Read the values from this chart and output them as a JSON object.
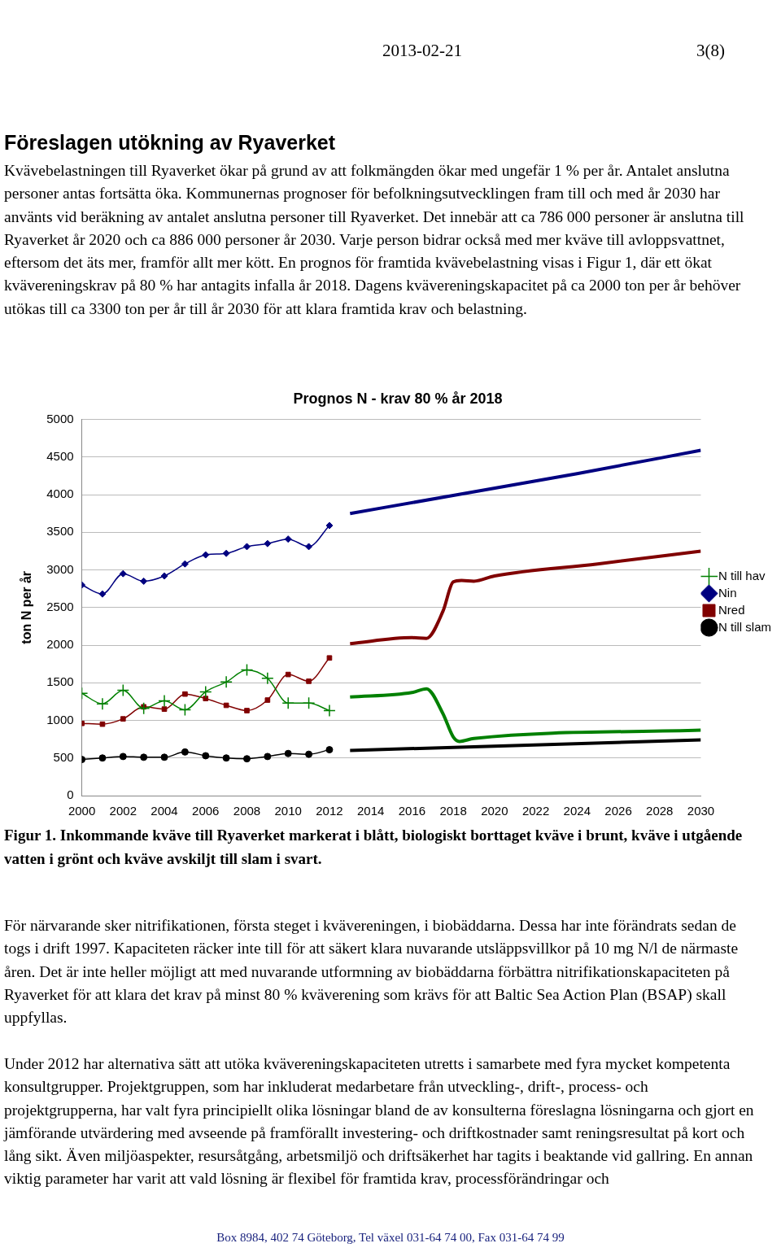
{
  "chart_data": {
    "type": "line",
    "title": "Prognos N - krav 80 % år 2018",
    "ylabel": "ton N per år",
    "xlim": [
      2000,
      2030
    ],
    "xticks": [
      2000,
      2002,
      2004,
      2006,
      2008,
      2010,
      2012,
      2014,
      2016,
      2018,
      2020,
      2022,
      2024,
      2026,
      2028,
      2030
    ],
    "ylim": [
      0,
      5000
    ],
    "yticks": [
      0,
      500,
      1000,
      1500,
      2000,
      2500,
      3000,
      3500,
      4000,
      4500,
      5000
    ],
    "grid": "y",
    "legend": "right",
    "series": [
      {
        "name": "Nin",
        "color": "#000080",
        "marker": "diamond",
        "x": [
          2000,
          2001,
          2002,
          2003,
          2004,
          2005,
          2006,
          2007,
          2008,
          2009,
          2010,
          2011,
          2012
        ],
        "values": [
          2800,
          2680,
          2950,
          2850,
          2920,
          3080,
          3200,
          3220,
          3310,
          3350,
          3410,
          3310,
          3590
        ]
      },
      {
        "name": "Nred",
        "color": "#800000",
        "marker": "square",
        "x": [
          2000,
          2001,
          2002,
          2003,
          2004,
          2005,
          2006,
          2007,
          2008,
          2009,
          2010,
          2011,
          2012
        ],
        "values": [
          960,
          950,
          1020,
          1180,
          1150,
          1350,
          1290,
          1200,
          1130,
          1270,
          1610,
          1520,
          1830
        ]
      },
      {
        "name": "N till hav",
        "color": "#008000",
        "marker": "cross",
        "x": [
          2000,
          2001,
          2002,
          2003,
          2004,
          2005,
          2006,
          2007,
          2008,
          2009,
          2010,
          2011,
          2012
        ],
        "values": [
          1360,
          1220,
          1400,
          1160,
          1260,
          1140,
          1380,
          1510,
          1670,
          1560,
          1230,
          1230,
          1130
        ]
      },
      {
        "name": "N till slam",
        "color": "#000000",
        "marker": "circle",
        "x": [
          2000,
          2001,
          2002,
          2003,
          2004,
          2005,
          2006,
          2007,
          2008,
          2009,
          2010,
          2011,
          2012
        ],
        "values": [
          480,
          500,
          520,
          510,
          510,
          580,
          530,
          500,
          490,
          520,
          560,
          550,
          610
        ]
      },
      {
        "color": "#000080",
        "marker": "none",
        "x": [
          2013,
          2018,
          2024,
          2030
        ],
        "values": [
          3750,
          3990,
          4280,
          4590
        ]
      },
      {
        "color": "#800000",
        "marker": "none",
        "x": [
          2013,
          2016,
          2016.7,
          2017.5,
          2018,
          2018.4,
          2019,
          2020,
          2025,
          2030
        ],
        "values": [
          2020,
          2100,
          2090,
          2450,
          2840,
          2860,
          2850,
          2920,
          3080,
          3250
        ]
      },
      {
        "color": "#008000",
        "marker": "none",
        "x": [
          2013,
          2016,
          2016.7,
          2017.5,
          2018,
          2018.3,
          2019,
          2030
        ],
        "values": [
          1310,
          1370,
          1420,
          1090,
          780,
          720,
          760,
          870
        ]
      },
      {
        "color": "#000000",
        "marker": "none",
        "x": [
          2013,
          2030
        ],
        "values": [
          600,
          740
        ]
      }
    ],
    "annotations": [
      "2013-02-21",
      "3(8)",
      "Föreslagen utökning av Ryaverket",
      "Kvävebelastningen till Ryaverket ökar på grund av att folkmängden ökar med ungefär 1 % per år. Antalet anslutna personer antas fortsätta öka. Kommunernas prognoser för befolkningsutvecklingen fram till och med år 2030 har använts vid beräkning av antalet anslutna personer till Ryaverket. Det innebär att ca 786 000 personer är anslutna till Ryaverket år 2020 och ca 886 000 personer år 2030. Varje person bidrar också med mer kväve till avloppsvattnet, eftersom det äts mer, framför allt mer kött. En prognos för framtida kvävebelastning visas i Figur 1, där ett ökat kvävereningskrav på 80 % har antagits infalla år 2018. Dagens kvävereningskapacitet på ca 2000 ton per år behöver utökas till ca 3300 ton per år till år 2030 för att klara framtida krav och belastning.",
      "Figur 1. Inkommande kväve till Ryaverket markerat i blått, biologiskt borttaget kväve i brunt, kväve i utgående vatten i grönt och kväve avskiljt till slam i svart.",
      "För närvarande sker nitrifikationen, första steget i kvävereningen, i biobäddarna. Dessa har inte förändrats sedan de togs i drift 1997. Kapaciteten räcker inte till för att säkert klara nuvarande utsläppsvillkor på 10 mg N/l de närmaste åren. Det är inte heller möjligt att med nuvarande utformning av biobäddarna förbättra nitrifikationskapaciteten på Ryaverket för att klara det krav på minst 80 % kväverening som krävs för att Baltic Sea Action Plan (BSAP) skall uppfyllas.",
      "Under 2012 har alternativa sätt att utöka kvävereningskapaciteten utretts i samarbete med fyra mycket kompetenta konsultgrupper. Projektgruppen, som har inkluderat medarbetare från utveckling-, drift-, process- och projektgrupperna, har valt fyra principiellt olika lösningar bland de av konsulterna föreslagna lösningarna och gjort en jämförande utvärdering med avseende på framförallt investering- och driftkostnader samt reningsresultat på kort och lång sikt. Även miljöaspekter, resursåtgång, arbetsmiljö och driftsäkerhet har tagits i beaktande vid gallring. En annan viktig parameter har varit att vald lösning är flexibel för framtida krav, processförändringar och",
      "Box 8984, 402 74 Göteborg, Tel växel 031-64 74 00, Fax 031-64 74 99"
    ]
  }
}
